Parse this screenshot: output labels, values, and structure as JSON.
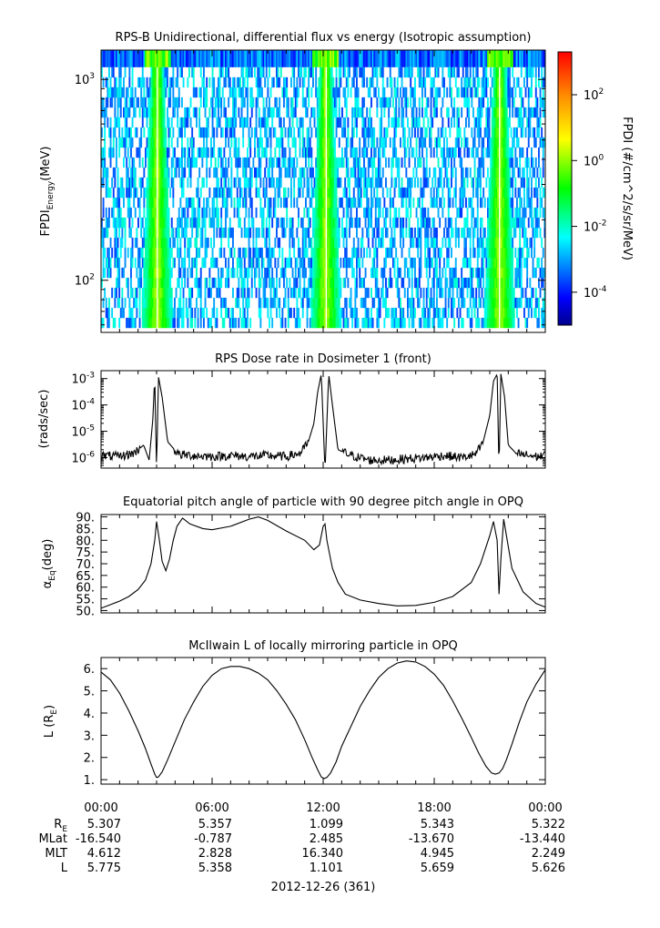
{
  "chart_data": [
    {
      "type": "heatmap",
      "title": "RPS-B  Unidirectional, differential flux vs energy (Isotropic assumption)",
      "ylabel_main": "FPDI",
      "ylabel_sub": "Energy",
      "ylabel_unit": "(MeV)",
      "yscale": "log",
      "yrange": [
        55,
        1400
      ],
      "yticks": [
        {
          "value": 100,
          "base": "10",
          "exp": "2"
        },
        {
          "value": 1000,
          "base": "10",
          "exp": "3"
        }
      ],
      "colorbar": {
        "label": "FPDI (#/cm^2/s/sr/MeV)",
        "scale": "log",
        "range": [
          1e-05,
          2000
        ],
        "ticks": [
          {
            "value": 0.0001,
            "base": "10",
            "exp": "-4"
          },
          {
            "value": 0.01,
            "base": "10",
            "exp": "-2"
          },
          {
            "value": 1,
            "base": "10",
            "exp": "0"
          },
          {
            "value": 100,
            "base": "10",
            "exp": "2"
          }
        ]
      },
      "perigee_hours": [
        3.0,
        12.1,
        21.5
      ]
    },
    {
      "type": "line",
      "title": "RPS  Dose rate in Dosimeter 1 (front)",
      "ylabel": "(rads/sec)",
      "yscale": "log",
      "yrange": [
        4e-07,
        0.002
      ],
      "yticks": [
        {
          "value": 1e-06,
          "base": "10",
          "exp": "-6"
        },
        {
          "value": 1e-05,
          "base": "10",
          "exp": "-5"
        },
        {
          "value": 0.0001,
          "base": "10",
          "exp": "-4"
        },
        {
          "value": 0.001,
          "base": "10",
          "exp": "-3"
        }
      ],
      "x": [
        0,
        1.0,
        1.8,
        2.3,
        2.6,
        2.8,
        2.9,
        3.0,
        3.1,
        3.3,
        3.6,
        4.2,
        5.0,
        6.0,
        7.0,
        8.0,
        9.0,
        10.0,
        10.8,
        11.2,
        11.5,
        11.7,
        11.9,
        12.1,
        12.3,
        12.5,
        12.8,
        13.5,
        14.5,
        15.5,
        16.5,
        17.5,
        18.5,
        19.5,
        20.2,
        20.6,
        21.0,
        21.2,
        21.4,
        21.5,
        21.6,
        21.8,
        22.0,
        22.4,
        22.8,
        23.5,
        24.0
      ],
      "y": [
        1.2e-06,
        1.1e-06,
        1.5e-06,
        3e-06,
        8e-07,
        3e-05,
        0.0012,
        3e-07,
        0.0012,
        0.0002,
        4e-06,
        1.3e-06,
        1.2e-06,
        1.1e-06,
        1.2e-06,
        1.1e-06,
        1.2e-06,
        1.1e-06,
        1.5e-06,
        4e-06,
        2e-05,
        0.0003,
        0.0015,
        3e-07,
        0.0015,
        0.0001,
        2e-06,
        1.2e-06,
        8e-07,
        8e-07,
        9e-07,
        1e-06,
        1.2e-06,
        1e-06,
        1.3e-06,
        3e-06,
        4e-05,
        0.0008,
        0.0015,
        3e-07,
        0.0015,
        0.0002,
        3e-06,
        1.5e-06,
        1.3e-06,
        1.1e-06,
        1.2e-06
      ]
    },
    {
      "type": "line",
      "title": "Equatorial pitch angle of particle with 90 degree pitch angle in OPQ",
      "ylabel_main": "α",
      "ylabel_sub": "Eq",
      "ylabel_unit": "(deg)",
      "yrange": [
        49,
        91
      ],
      "yticks": [
        50,
        55,
        60,
        65,
        70,
        75,
        80,
        85,
        90
      ],
      "ytick_labels": [
        "50.",
        "55.",
        "60.",
        "65.",
        "70.",
        "75.",
        "80.",
        "85.",
        "90."
      ],
      "x": [
        0,
        0.5,
        1.0,
        1.5,
        2.0,
        2.4,
        2.7,
        2.9,
        3.0,
        3.15,
        3.3,
        3.5,
        3.7,
        3.9,
        4.1,
        4.4,
        4.8,
        5.5,
        6.0,
        7.0,
        8.0,
        8.5,
        9.0,
        10.0,
        11.0,
        11.5,
        11.8,
        12.0,
        12.1,
        12.2,
        12.35,
        12.5,
        12.8,
        13.2,
        14.0,
        15.0,
        16.0,
        17.0,
        18.0,
        19.0,
        20.0,
        20.5,
        21.0,
        21.2,
        21.4,
        21.5,
        21.6,
        21.75,
        21.9,
        22.2,
        22.8,
        23.5,
        24.0
      ],
      "y": [
        51,
        52.5,
        54,
        56,
        59,
        63,
        70,
        80,
        88,
        80,
        71,
        67,
        72,
        80,
        86,
        89.5,
        87,
        85,
        84.5,
        86,
        89,
        90,
        88.5,
        84,
        80,
        76,
        78,
        86,
        87,
        80,
        74,
        68,
        62,
        57,
        54.5,
        53,
        52,
        52.2,
        53.5,
        56,
        62,
        70,
        82,
        88,
        80,
        57,
        72,
        89,
        82,
        68,
        58,
        53,
        51.5
      ]
    },
    {
      "type": "line",
      "title": "McIlwain L of locally mirroring particle in OPQ",
      "ylabel_main": "L (R",
      "ylabel_sub": "E",
      "ylabel_unit": ")",
      "yrange": [
        0.8,
        6.5
      ],
      "yticks": [
        1,
        2,
        3,
        4,
        5,
        6
      ],
      "ytick_labels": [
        "1.",
        "2.",
        "3.",
        "4.",
        "5.",
        "6."
      ],
      "x": [
        0,
        0.5,
        1.0,
        1.5,
        2.0,
        2.4,
        2.7,
        2.9,
        3.0,
        3.1,
        3.3,
        3.6,
        4.0,
        4.5,
        5.0,
        5.5,
        6.0,
        6.5,
        7.0,
        7.5,
        8.0,
        8.5,
        9.0,
        9.5,
        10.0,
        10.5,
        11.0,
        11.4,
        11.7,
        11.9,
        12.05,
        12.2,
        12.4,
        12.7,
        13.0,
        13.5,
        14.0,
        14.5,
        15.0,
        15.5,
        16.0,
        16.5,
        17.0,
        17.5,
        18.0,
        18.5,
        19.0,
        19.5,
        20.0,
        20.4,
        20.8,
        21.1,
        21.3,
        21.5,
        21.7,
        21.9,
        22.2,
        22.6,
        23.0,
        23.5,
        24.0
      ],
      "y": [
        5.85,
        5.5,
        4.9,
        4.1,
        3.2,
        2.4,
        1.7,
        1.25,
        1.1,
        1.12,
        1.35,
        1.9,
        2.7,
        3.7,
        4.5,
        5.2,
        5.7,
        6.0,
        6.1,
        6.1,
        6.0,
        5.8,
        5.5,
        5.0,
        4.4,
        3.7,
        2.8,
        2.0,
        1.45,
        1.12,
        1.05,
        1.1,
        1.3,
        1.8,
        2.5,
        3.4,
        4.3,
        5.0,
        5.6,
        6.0,
        6.25,
        6.35,
        6.3,
        6.1,
        5.75,
        5.25,
        4.55,
        3.75,
        2.9,
        2.2,
        1.6,
        1.3,
        1.25,
        1.3,
        1.5,
        1.9,
        2.6,
        3.6,
        4.5,
        5.3,
        5.95
      ]
    }
  ],
  "xaxis": {
    "range_hours": [
      0,
      24
    ],
    "ticks": [
      {
        "hour": 0,
        "label": "00:00"
      },
      {
        "hour": 6,
        "label": "06:00"
      },
      {
        "hour": 12,
        "label": "12:00"
      },
      {
        "hour": 18,
        "label": "18:00"
      },
      {
        "hour": 24,
        "label": "00:00"
      }
    ],
    "date_label": "2012-12-26 (361)"
  },
  "ephemeris": {
    "rows": [
      {
        "name": "R",
        "sub": "E",
        "values": [
          "5.307",
          "5.357",
          "1.099",
          "5.343",
          "5.322"
        ]
      },
      {
        "name": "MLat",
        "sub": "",
        "values": [
          "-16.540",
          "-0.787",
          "2.485",
          "-13.670",
          "-13.440"
        ]
      },
      {
        "name": "MLT",
        "sub": "",
        "values": [
          "4.612",
          "2.828",
          "16.340",
          "4.945",
          "2.249"
        ]
      },
      {
        "name": "L",
        "sub": "",
        "values": [
          "5.775",
          "5.358",
          "1.101",
          "5.659",
          "5.626"
        ]
      }
    ]
  }
}
